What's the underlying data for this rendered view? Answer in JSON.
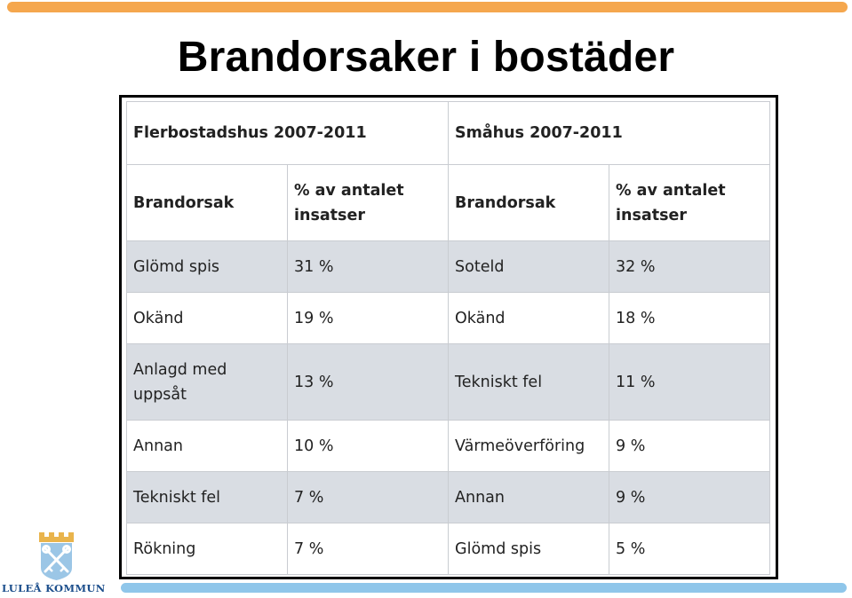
{
  "slide": {
    "title": "Brandorsaker i bostäder"
  },
  "table": {
    "left_group_title": "Flerbostadshus 2007-2011",
    "right_group_title": "Småhus 2007-2011",
    "headers": [
      "Brandorsak",
      "% av antalet insatser",
      "Brandorsak",
      "% av antalet insatser"
    ],
    "rows": [
      [
        "Glömd spis",
        "31 %",
        "Soteld",
        "32 %"
      ],
      [
        "Okänd",
        "19 %",
        "Okänd",
        "18 %"
      ],
      [
        "Anlagd med uppsåt",
        "13 %",
        "Tekniskt fel",
        "11 %"
      ],
      [
        "Annan",
        "10 %",
        "Värmeöverföring",
        "9 %"
      ],
      [
        "Tekniskt fel",
        "7 %",
        "Annan",
        "9 %"
      ],
      [
        "Rökning",
        "7 %",
        "Glömd spis",
        "5 %"
      ]
    ]
  },
  "logo": {
    "text": "LULEÅ KOMMUN",
    "icon": "crossed-keys-crest-icon"
  },
  "colors": {
    "top_bar": "#f5a74e",
    "bottom_bar": "#8fc6ea",
    "row_shade": "#d9dde3"
  }
}
